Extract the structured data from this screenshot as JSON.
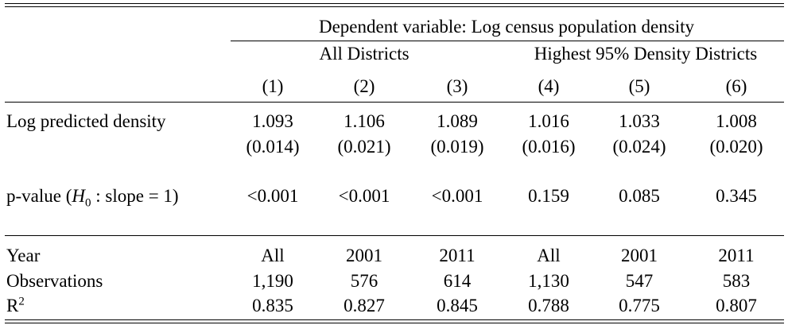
{
  "header": {
    "dependent_variable": "Dependent variable: Log census population density",
    "group_all": "All Districts",
    "group_high": "Highest 95% Density Districts",
    "columns": [
      "(1)",
      "(2)",
      "(3)",
      "(4)",
      "(5)",
      "(6)"
    ]
  },
  "rows": {
    "log_pred": {
      "label": "Log predicted density",
      "coef": [
        "1.093",
        "1.106",
        "1.089",
        "1.016",
        "1.033",
        "1.008"
      ],
      "se": [
        "(0.014)",
        "(0.021)",
        "(0.019)",
        "(0.016)",
        "(0.024)",
        "(0.020)"
      ]
    },
    "pvalue": {
      "label_prefix": "p-value (",
      "label_H": "H",
      "label_sub": "0",
      "label_suffix": " : slope = 1)",
      "values": [
        "<0.001",
        "<0.001",
        "<0.001",
        "0.159",
        "0.085",
        "0.345"
      ]
    },
    "year": {
      "label": "Year",
      "values": [
        "All",
        "2001",
        "2011",
        "All",
        "2001",
        "2011"
      ]
    },
    "obs": {
      "label": "Observations",
      "values": [
        "1,190",
        "576",
        "614",
        "1,130",
        "547",
        "583"
      ]
    },
    "r2": {
      "label": "R",
      "label_sup": "2",
      "values": [
        "0.835",
        "0.827",
        "0.845",
        "0.788",
        "0.775",
        "0.807"
      ]
    }
  }
}
